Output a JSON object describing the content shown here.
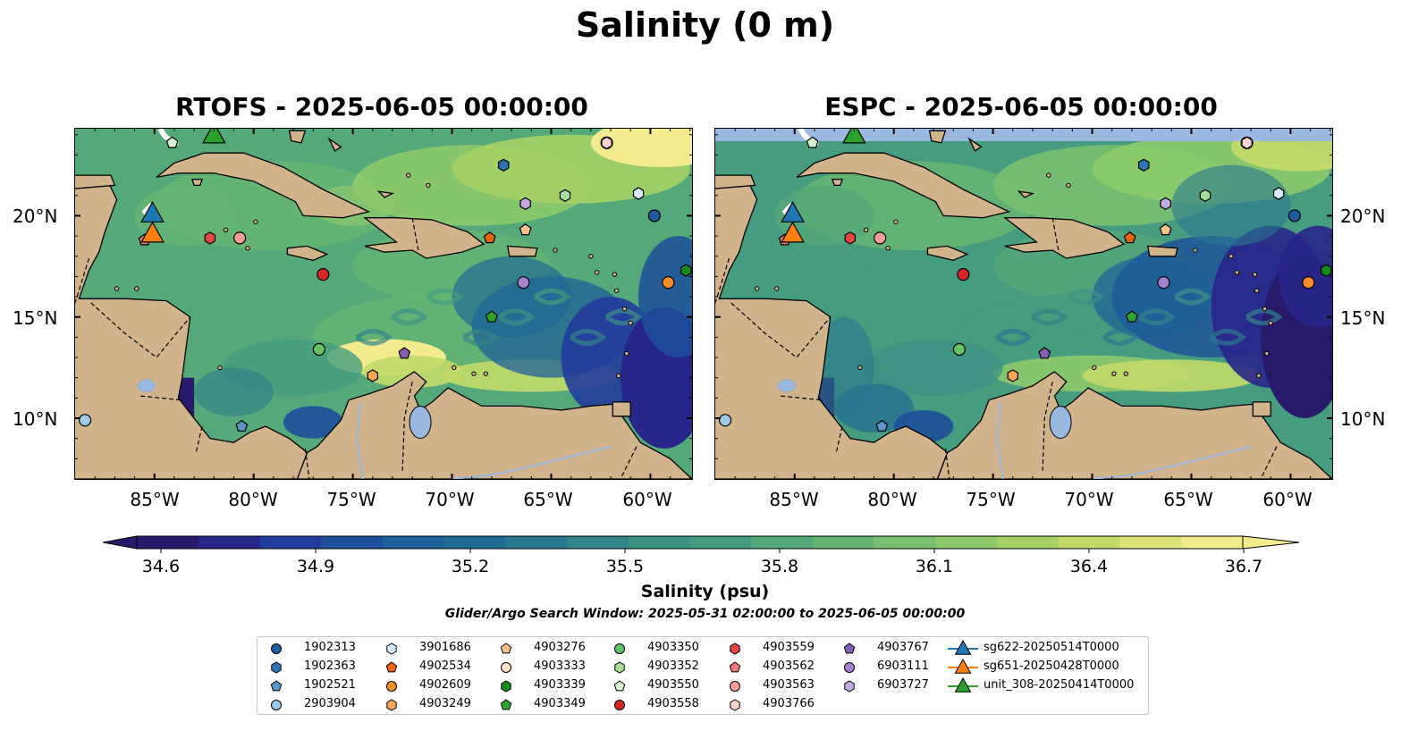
{
  "title": "Salinity (0 m)",
  "panels": [
    {
      "title": "RTOFS - 2025-06-05 00:00:00"
    },
    {
      "title": "ESPC - 2025-06-05 00:00:00"
    }
  ],
  "lat_labels": [
    "20°N",
    "15°N",
    "10°N"
  ],
  "lon_labels": [
    "85°W",
    "80°W",
    "75°W",
    "70°W",
    "65°W",
    "60°W"
  ],
  "colorbar": {
    "label": "Salinity (psu)",
    "ticks": [
      "34.6",
      "34.9",
      "35.2",
      "35.5",
      "35.8",
      "36.1",
      "36.4",
      "36.7"
    ],
    "colors": [
      "#271a6b",
      "#29268a",
      "#223c9b",
      "#1d4f9a",
      "#1d5f98",
      "#206b94",
      "#2a7890",
      "#338589",
      "#3c9184",
      "#459c7e",
      "#55a879",
      "#65b474",
      "#78c070",
      "#8dc96b",
      "#a5d066",
      "#c2da6a",
      "#dfe47a",
      "#f3ec8f"
    ]
  },
  "search_window": "Glider/Argo Search Window: 2025-05-31 02:00:00 to 2025-06-05 00:00:00",
  "land_color": "#d2b48c",
  "lake_color": "#9ab8e0",
  "legend": [
    {
      "label": "1902313",
      "shape": "circle",
      "color": "#1f5b9e"
    },
    {
      "label": "1902363",
      "shape": "hexagon",
      "color": "#2e74b0"
    },
    {
      "label": "1902521",
      "shape": "pentagon",
      "color": "#5b96c9"
    },
    {
      "label": "2903904",
      "shape": "circle",
      "color": "#9ecae9"
    },
    {
      "label": "3901686",
      "shape": "hexagon",
      "color": "#d4e9f7"
    },
    {
      "label": "4902534",
      "shape": "pentagon",
      "color": "#e8650c"
    },
    {
      "label": "4902609",
      "shape": "circle",
      "color": "#f58d2b"
    },
    {
      "label": "4903249",
      "shape": "hexagon",
      "color": "#fba657"
    },
    {
      "label": "4903276",
      "shape": "pentagon",
      "color": "#fcc18d"
    },
    {
      "label": "4903333",
      "shape": "circle",
      "color": "#fde0c6"
    },
    {
      "label": "4903339",
      "shape": "hexagon",
      "color": "#1a8a1e"
    },
    {
      "label": "4903349",
      "shape": "pentagon",
      "color": "#2ea62e"
    },
    {
      "label": "4903350",
      "shape": "circle",
      "color": "#67c264"
    },
    {
      "label": "4903352",
      "shape": "hexagon",
      "color": "#a6de9b"
    },
    {
      "label": "4903550",
      "shape": "pentagon",
      "color": "#d9f2d0"
    },
    {
      "label": "4903558",
      "shape": "circle",
      "color": "#d62728"
    },
    {
      "label": "4903559",
      "shape": "hexagon",
      "color": "#e64545"
    },
    {
      "label": "4903562",
      "shape": "pentagon",
      "color": "#f07a7a"
    },
    {
      "label": "4903563",
      "shape": "circle",
      "color": "#f59d9a"
    },
    {
      "label": "4903766",
      "shape": "hexagon",
      "color": "#fbd3d0"
    },
    {
      "label": "4903767",
      "shape": "pentagon",
      "color": "#8560b3"
    },
    {
      "label": "6903111",
      "shape": "circle",
      "color": "#a583cd"
    },
    {
      "label": "6903727",
      "shape": "hexagon",
      "color": "#c4a9e4"
    },
    {
      "label": "sg622-20250514T0000",
      "shape": "triangle",
      "color": "#1f77b4"
    },
    {
      "label": "sg651-20250428T0000",
      "shape": "triangle",
      "color": "#ff7f0e"
    },
    {
      "label": "unit_308-20250414T0000",
      "shape": "triangle",
      "color": "#2ca02c"
    }
  ],
  "markers": [
    {
      "id": "1902313",
      "lon": -59.8,
      "lat": 20.0
    },
    {
      "id": "1902363",
      "lon": -67.4,
      "lat": 22.5
    },
    {
      "id": "1902521",
      "lon": -80.6,
      "lat": 9.6
    },
    {
      "id": "2903904",
      "lon": -88.5,
      "lat": 9.9
    },
    {
      "id": "3901686",
      "lon": -60.6,
      "lat": 21.1
    },
    {
      "id": "4902534",
      "lon": -68.1,
      "lat": 18.9
    },
    {
      "id": "4902609",
      "lon": -59.1,
      "lat": 16.7
    },
    {
      "id": "4903249",
      "lon": -74.0,
      "lat": 12.1
    },
    {
      "id": "4903276",
      "lon": -66.3,
      "lat": 19.3
    },
    {
      "id": "4903333",
      "lon": -62.2,
      "lat": 23.6
    },
    {
      "id": "4903339",
      "lon": -58.2,
      "lat": 17.3
    },
    {
      "id": "4903349",
      "lon": -68.0,
      "lat": 15.0
    },
    {
      "id": "4903350",
      "lon": -76.7,
      "lat": 13.4
    },
    {
      "id": "4903352",
      "lon": -64.3,
      "lat": 21.0
    },
    {
      "id": "4903550",
      "lon": -84.1,
      "lat": 23.6
    },
    {
      "id": "4903558",
      "lon": -76.5,
      "lat": 17.1
    },
    {
      "id": "4903559",
      "lon": -82.2,
      "lat": 18.9
    },
    {
      "id": "4903562",
      "lon": -85.5,
      "lat": 18.8
    },
    {
      "id": "4903563",
      "lon": -80.7,
      "lat": 18.9
    },
    {
      "id": "4903766",
      "lon": -62.2,
      "lat": 23.6
    },
    {
      "id": "4903767",
      "lon": -72.4,
      "lat": 13.2
    },
    {
      "id": "6903111",
      "lon": -66.4,
      "lat": 16.7
    },
    {
      "id": "6903727",
      "lon": -66.3,
      "lat": 20.6
    }
  ],
  "glider_tracks": [
    {
      "id": "sg622-20250514T0000",
      "lon": -85.1,
      "lat": 20.1
    },
    {
      "id": "sg651-20250428T0000",
      "lon": -85.1,
      "lat": 19.1
    },
    {
      "id": "unit_308-20250414T0000",
      "lon": -82.0,
      "lat": 24.0
    }
  ]
}
